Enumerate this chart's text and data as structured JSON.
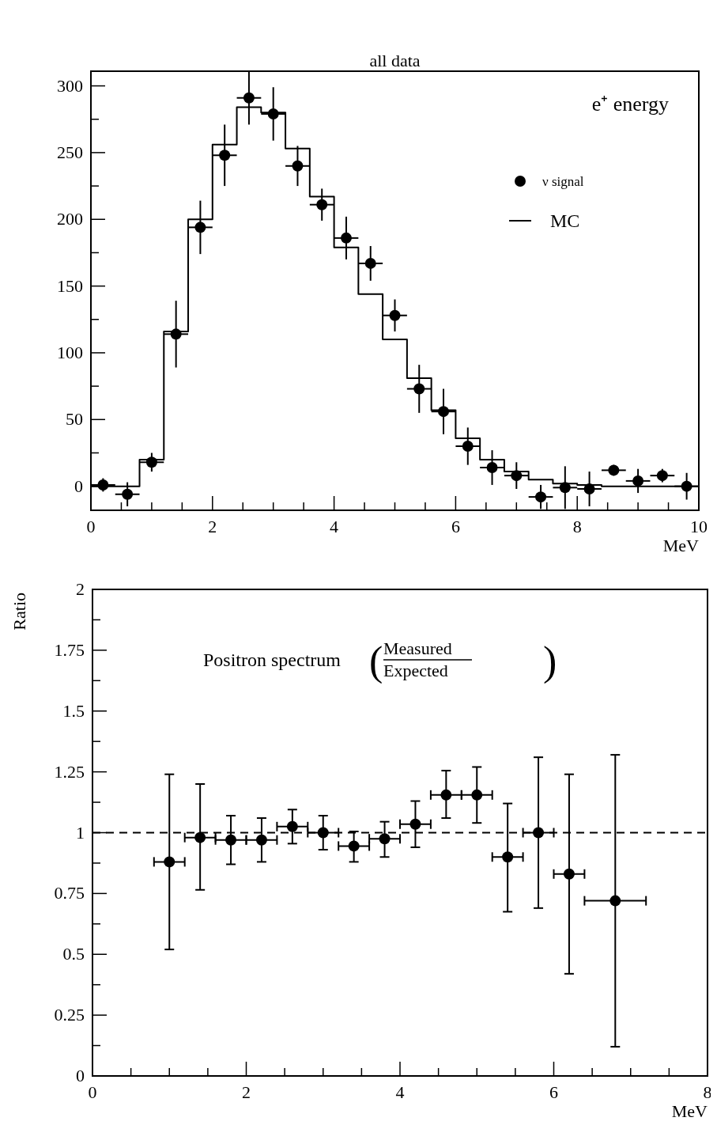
{
  "chart_data": [
    {
      "type": "histogram",
      "title": "all data",
      "xlabel": "MeV",
      "annotations": [
        "e⁺ energy"
      ],
      "legend": "right",
      "xlim": [
        0,
        10
      ],
      "ylim": [
        -18,
        311
      ],
      "xticks": [
        0,
        {
          "value": 0.5,
          "label": null
        },
        {
          "value": 1,
          "label": null
        },
        {
          "value": 1.5,
          "label": null
        },
        2,
        {
          "value": 2.5,
          "label": null
        },
        {
          "value": 3,
          "label": null
        },
        {
          "value": 3.5,
          "label": null
        },
        4,
        {
          "value": 4.5,
          "label": null
        },
        {
          "value": 5,
          "label": null
        },
        {
          "value": 5.5,
          "label": null
        },
        6,
        {
          "value": 6.5,
          "label": null
        },
        {
          "value": 7,
          "label": null
        },
        {
          "value": 7.5,
          "label": null
        },
        8,
        {
          "value": 8.5,
          "label": null
        },
        {
          "value": 9,
          "label": null
        },
        {
          "value": 9.5,
          "label": null
        },
        10
      ],
      "yticks": [
        0,
        {
          "value": 25,
          "label": null
        },
        50,
        {
          "value": 75,
          "label": null
        },
        100,
        {
          "value": 125,
          "label": null
        },
        150,
        {
          "value": 175,
          "label": null
        },
        200,
        {
          "value": 225,
          "label": null
        },
        250,
        {
          "value": 275,
          "label": null
        },
        300
      ],
      "series": [
        {
          "name": "ν signal",
          "type": "scatter",
          "color": "#000000",
          "marker": "circle",
          "x": [
            0.2,
            0.6,
            1.0,
            1.4,
            1.8,
            2.2,
            2.6,
            3.0,
            3.4,
            3.8,
            4.2,
            4.6,
            5.0,
            5.4,
            5.8,
            6.2,
            6.6,
            7.0,
            7.4,
            7.8,
            8.2,
            8.6,
            9.0,
            9.4,
            9.8
          ],
          "values": [
            1,
            -6,
            18,
            114,
            194,
            248,
            291,
            279,
            240,
            211,
            186,
            167,
            128,
            73,
            56,
            30,
            14,
            8,
            -8,
            -1,
            -2,
            12,
            4,
            8,
            0
          ],
          "errors": [
            5,
            9,
            7,
            25,
            20,
            23,
            20,
            20,
            15,
            12,
            16,
            13,
            12,
            18,
            17,
            14,
            13,
            10,
            9,
            16,
            13,
            4,
            9,
            5,
            10
          ],
          "xerrors": [
            0.2,
            0.2,
            0.2,
            0.2,
            0.2,
            0.2,
            0.2,
            0.2,
            0.2,
            0.2,
            0.2,
            0.2,
            0.2,
            0.2,
            0.2,
            0.2,
            0.2,
            0.2,
            0.2,
            0.2,
            0.2,
            0.2,
            0.2,
            0.2,
            0.2
          ]
        },
        {
          "name": "MC",
          "color": "#000000",
          "bins": [
            0,
            0.4,
            0.8,
            1.2,
            1.6,
            2.0,
            2.4,
            2.8,
            3.2,
            3.6,
            4.0,
            4.4,
            4.8,
            5.2,
            5.6,
            6.0,
            6.4,
            6.8,
            7.2,
            7.6,
            8.0,
            8.4,
            8.8,
            9.2,
            9.6,
            10
          ],
          "values": [
            0,
            0,
            20,
            116,
            200,
            256,
            284,
            280,
            253,
            217,
            179,
            144,
            110,
            81,
            57,
            36,
            20,
            11,
            5,
            2,
            1,
            0,
            0,
            0,
            0
          ]
        }
      ]
    },
    {
      "type": "scatter",
      "ylabel": "Ratio",
      "xlabel": "MeV",
      "annotations": [
        "Positron spectrum",
        "(",
        "Measured",
        "Expected",
        ")"
      ],
      "xlim": [
        0,
        8
      ],
      "ylim": [
        0,
        2
      ],
      "xticks": [
        0,
        {
          "value": 0.5,
          "label": null
        },
        {
          "value": 1,
          "label": null
        },
        {
          "value": 1.5,
          "label": null
        },
        2,
        {
          "value": 2.5,
          "label": null
        },
        {
          "value": 3,
          "label": null
        },
        {
          "value": 3.5,
          "label": null
        },
        4,
        {
          "value": 4.5,
          "label": null
        },
        {
          "value": 5,
          "label": null
        },
        {
          "value": 5.5,
          "label": null
        },
        6,
        {
          "value": 6.5,
          "label": null
        },
        {
          "value": 7,
          "label": null
        },
        {
          "value": 7.5,
          "label": null
        },
        8
      ],
      "yticks": [
        0,
        {
          "value": 0.125,
          "label": null
        },
        0.25,
        {
          "value": 0.375,
          "label": null
        },
        0.5,
        {
          "value": 0.625,
          "label": null
        },
        0.75,
        {
          "value": 0.875,
          "label": null
        },
        1,
        {
          "value": 1.125,
          "label": null
        },
        1.25,
        {
          "value": 1.375,
          "label": null
        },
        1.5,
        {
          "value": 1.625,
          "label": null
        },
        1.75,
        {
          "value": 1.875,
          "label": null
        },
        2
      ],
      "ref_lines": [
        {
          "axis": "y",
          "value": 1,
          "line_style": "dashed",
          "color": "#000000"
        }
      ],
      "series": [
        {
          "color": "#000000",
          "marker": "circle",
          "x": [
            1.0,
            1.4,
            1.8,
            2.2,
            2.6,
            3.0,
            3.4,
            3.8,
            4.2,
            4.6,
            5.0,
            5.4,
            5.8,
            6.2,
            6.8
          ],
          "values": [
            0.88,
            0.98,
            0.97,
            0.97,
            1.025,
            1.0,
            0.945,
            0.975,
            1.035,
            1.155,
            1.155,
            0.9,
            1.0,
            0.83,
            0.72
          ],
          "errors": [
            [
              0.52,
              1.24
            ],
            [
              0.765,
              1.2
            ],
            [
              0.87,
              1.07
            ],
            [
              0.88,
              1.06
            ],
            [
              0.955,
              1.095
            ],
            [
              0.93,
              1.07
            ],
            [
              0.88,
              1.005
            ],
            [
              0.9,
              1.045
            ],
            [
              0.94,
              1.13
            ],
            [
              1.06,
              1.255
            ],
            [
              1.04,
              1.27
            ],
            [
              0.675,
              1.12
            ],
            [
              0.69,
              1.31
            ],
            [
              0.42,
              1.24
            ],
            [
              0.12,
              1.32
            ]
          ],
          "xerrors": [
            0.2,
            0.2,
            0.2,
            0.2,
            0.2,
            0.2,
            0.2,
            0.2,
            0.2,
            0.2,
            0.2,
            0.2,
            0.2,
            0.2,
            0.4
          ]
        }
      ]
    }
  ]
}
